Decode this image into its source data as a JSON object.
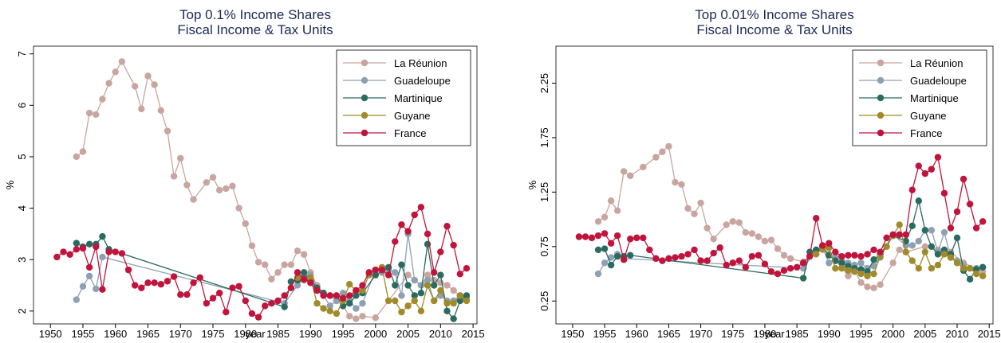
{
  "chart_data": [
    {
      "type": "line",
      "title": "Top 0.1% Income Shares",
      "subtitle": "Fiscal Income & Tax Units",
      "xlabel": "year",
      "ylabel": "%",
      "xlim": [
        1947.4,
        2015.6
      ],
      "ylim": [
        1.75,
        7.15
      ],
      "xticks": [
        1950,
        1955,
        1960,
        1965,
        1970,
        1975,
        1980,
        1985,
        1990,
        1995,
        2000,
        2005,
        2010,
        2015
      ],
      "yticks": [
        2,
        3,
        4,
        5,
        6,
        7
      ],
      "legend": "top-right",
      "grid": false,
      "series": [
        {
          "name": "La Réunion",
          "color": "#c9a59f",
          "x": [
            1954,
            1955,
            1956,
            1957,
            1958,
            1959,
            1960,
            1961,
            1963,
            1964,
            1965,
            1966,
            1967,
            1968,
            1969,
            1970,
            1971,
            1972,
            1974,
            1975,
            1976,
            1977,
            1978,
            1979,
            1980,
            1981,
            1982,
            1983,
            1984,
            1985,
            1986,
            1987,
            1988,
            1989,
            1990,
            1991,
            1992,
            1993,
            1994,
            1995,
            1996,
            1997,
            1998,
            2000,
            2005,
            2006,
            2007,
            2008,
            2009,
            2010,
            2011,
            2012,
            2013,
            2014
          ],
          "values": [
            5.0,
            5.1,
            5.85,
            5.82,
            6.12,
            6.43,
            6.65,
            6.85,
            6.37,
            5.93,
            6.57,
            6.4,
            5.9,
            5.5,
            4.62,
            4.97,
            4.45,
            4.17,
            4.5,
            4.6,
            4.35,
            4.38,
            4.43,
            4.0,
            3.7,
            3.27,
            2.95,
            2.9,
            2.62,
            2.75,
            2.9,
            2.9,
            3.17,
            3.1,
            2.75,
            2.5,
            2.35,
            2.3,
            2.2,
            2.1,
            1.9,
            1.85,
            1.9,
            1.87,
            2.7,
            2.6,
            2.5,
            2.7,
            2.6,
            2.55,
            2.5,
            2.4,
            2.3,
            2.25
          ]
        },
        {
          "name": "Guadeloupe",
          "color": "#8ea1b4",
          "x": [
            1954,
            1955,
            1956,
            1957,
            1958,
            1986,
            1988,
            1989,
            1990,
            1991,
            1992,
            1993,
            1994,
            1995,
            1996,
            1997,
            1998,
            2000,
            2001,
            2002,
            2003,
            2004,
            2005,
            2006,
            2007,
            2008,
            2009,
            2010,
            2011,
            2012,
            2013,
            2014
          ],
          "values": [
            2.22,
            2.48,
            2.68,
            2.43,
            3.05,
            2.15,
            2.5,
            2.65,
            2.7,
            2.45,
            2.3,
            2.1,
            2.2,
            2.35,
            2.2,
            2.05,
            2.15,
            2.8,
            2.75,
            2.8,
            2.75,
            2.3,
            3.5,
            2.6,
            2.5,
            2.6,
            2.2,
            2.3,
            2.2,
            2.2,
            2.3,
            2.3
          ]
        },
        {
          "name": "Martinique",
          "color": "#2a6b5f",
          "x": [
            1954,
            1955,
            1956,
            1957,
            1958,
            1959,
            1986,
            1987,
            1988,
            1989,
            1990,
            1991,
            1992,
            1993,
            1994,
            1995,
            1996,
            1997,
            1998,
            2000,
            2002,
            2003,
            2004,
            2005,
            2006,
            2007,
            2008,
            2009,
            2010,
            2011,
            2012,
            2013,
            2014
          ],
          "values": [
            3.32,
            3.25,
            3.3,
            3.3,
            3.45,
            3.2,
            2.08,
            2.57,
            2.6,
            2.75,
            2.6,
            2.45,
            2.35,
            2.3,
            2.3,
            2.1,
            2.15,
            2.3,
            2.35,
            2.7,
            2.85,
            2.5,
            2.9,
            2.5,
            2.3,
            2.35,
            3.3,
            2.5,
            2.7,
            2.0,
            1.85,
            2.2,
            2.3
          ]
        },
        {
          "name": "Guyane",
          "color": "#a08a2a",
          "x": [
            1988,
            1989,
            1990,
            1991,
            1992,
            1993,
            1994,
            1995,
            1996,
            1997,
            1998,
            1999,
            2000,
            2001,
            2002,
            2003,
            2004,
            2005,
            2006,
            2007,
            2008,
            2009,
            2010,
            2011,
            2012,
            2013,
            2014
          ],
          "values": [
            2.65,
            2.6,
            2.65,
            2.15,
            2.05,
            2.0,
            1.95,
            2.2,
            2.52,
            2.4,
            2.4,
            2.7,
            2.8,
            2.85,
            2.2,
            2.2,
            1.98,
            2.1,
            2.2,
            2.0,
            2.5,
            2.2,
            2.4,
            2.15,
            2.15,
            2.3,
            2.2
          ]
        },
        {
          "name": "France",
          "color": "#c0143c",
          "x": [
            1951,
            1952,
            1953,
            1954,
            1955,
            1956,
            1957,
            1958,
            1959,
            1960,
            1961,
            1962,
            1963,
            1964,
            1965,
            1966,
            1967,
            1968,
            1969,
            1970,
            1971,
            1972,
            1973,
            1974,
            1975,
            1976,
            1977,
            1978,
            1979,
            1980,
            1981,
            1982,
            1983,
            1984,
            1985,
            1986,
            1987,
            1988,
            1989,
            1990,
            1991,
            1992,
            1993,
            1994,
            1995,
            1996,
            1997,
            1998,
            1999,
            2000,
            2001,
            2002,
            2003,
            2004,
            2005,
            2006,
            2007,
            2008,
            2009,
            2010,
            2011,
            2012,
            2013,
            2014
          ],
          "values": [
            3.05,
            3.15,
            3.1,
            3.2,
            3.22,
            2.85,
            3.25,
            2.42,
            3.15,
            3.15,
            3.12,
            2.8,
            2.5,
            2.45,
            2.55,
            2.55,
            2.52,
            2.58,
            2.67,
            2.32,
            2.32,
            2.55,
            2.65,
            2.15,
            2.25,
            2.35,
            1.98,
            2.45,
            2.48,
            2.2,
            1.95,
            1.88,
            2.1,
            2.15,
            2.2,
            2.3,
            2.45,
            2.75,
            2.62,
            2.55,
            2.4,
            2.3,
            2.3,
            2.3,
            2.25,
            2.3,
            2.4,
            2.5,
            2.75,
            2.8,
            2.8,
            2.7,
            3.35,
            3.68,
            3.55,
            3.87,
            4.02,
            3.5,
            2.75,
            3.15,
            3.65,
            3.28,
            2.72,
            2.83
          ]
        }
      ]
    },
    {
      "type": "line",
      "title": "Top 0.01% Income Shares",
      "subtitle": "Fiscal Income & Tax Units",
      "xlabel": "year",
      "ylabel": "%",
      "xlim": [
        1947.4,
        2015.6
      ],
      "ylim": [
        0.04,
        2.59
      ],
      "xticks": [
        1950,
        1955,
        1960,
        1965,
        1970,
        1975,
        1980,
        1985,
        1990,
        1995,
        2000,
        2005,
        2010,
        2015
      ],
      "yticks": [
        0.25,
        0.75,
        1.25,
        1.75,
        2.25
      ],
      "legend": "top-right",
      "grid": false,
      "series": [
        {
          "name": "La Réunion",
          "color": "#c9a59f",
          "x": [
            1954,
            1955,
            1956,
            1957,
            1958,
            1959,
            1961,
            1963,
            1964,
            1965,
            1966,
            1967,
            1968,
            1969,
            1970,
            1971,
            1972,
            1974,
            1975,
            1976,
            1977,
            1978,
            1979,
            1980,
            1981,
            1982,
            1983,
            1984,
            1986,
            1987,
            1988,
            1989,
            1990,
            1991,
            1992,
            1993,
            1994,
            1995,
            1996,
            1997,
            1998,
            2000,
            2001,
            2002,
            2005,
            2007,
            2009,
            2011,
            2013,
            2014
          ],
          "values": [
            0.98,
            1.02,
            1.17,
            1.08,
            1.44,
            1.4,
            1.48,
            1.57,
            1.62,
            1.67,
            1.34,
            1.32,
            1.1,
            1.05,
            1.15,
            0.92,
            0.82,
            0.95,
            0.98,
            0.97,
            0.88,
            0.87,
            0.84,
            0.8,
            0.81,
            0.73,
            0.67,
            0.64,
            0.61,
            0.66,
            0.72,
            0.72,
            0.68,
            0.62,
            0.56,
            0.48,
            0.53,
            0.42,
            0.38,
            0.37,
            0.4,
            0.6,
            0.72,
            0.7,
            0.75,
            0.72,
            0.7,
            0.6,
            0.55,
            0.52
          ]
        },
        {
          "name": "Guadeloupe",
          "color": "#8ea1b4",
          "x": [
            1954,
            1955,
            1956,
            1957,
            1958,
            1986,
            1988,
            1989,
            1990,
            1991,
            1992,
            1993,
            1994,
            1995,
            1996,
            1997,
            1998,
            2000,
            2002,
            2003,
            2004,
            2005,
            2006,
            2007,
            2008,
            2009,
            2010,
            2011,
            2012,
            2013,
            2014
          ],
          "values": [
            0.5,
            0.6,
            0.65,
            0.68,
            0.64,
            0.55,
            0.72,
            0.74,
            0.6,
            0.65,
            0.62,
            0.6,
            0.58,
            0.6,
            0.55,
            0.57,
            0.65,
            0.86,
            0.76,
            0.76,
            0.8,
            0.9,
            0.9,
            0.7,
            0.88,
            0.65,
            0.62,
            0.58,
            0.55,
            0.55,
            0.56
          ]
        },
        {
          "name": "Martinique",
          "color": "#2a6b5f",
          "x": [
            1954,
            1955,
            1956,
            1957,
            1958,
            1959,
            1986,
            1987,
            1988,
            1989,
            1990,
            1991,
            1992,
            1993,
            1994,
            1995,
            1996,
            1997,
            1998,
            2000,
            2002,
            2003,
            2004,
            2005,
            2006,
            2007,
            2008,
            2009,
            2010,
            2011,
            2012,
            2013,
            2014
          ],
          "values": [
            0.72,
            0.73,
            0.58,
            0.66,
            0.66,
            0.67,
            0.46,
            0.7,
            0.72,
            0.75,
            0.67,
            0.62,
            0.6,
            0.57,
            0.55,
            0.54,
            0.52,
            0.63,
            0.68,
            0.85,
            0.8,
            0.94,
            1.17,
            0.9,
            0.75,
            0.68,
            0.72,
            0.68,
            0.83,
            0.53,
            0.45,
            0.54,
            0.56
          ]
        },
        {
          "name": "Guyane",
          "color": "#a08a2a",
          "x": [
            1988,
            1989,
            1990,
            1991,
            1992,
            1993,
            1994,
            1995,
            1996,
            1997,
            1998,
            1999,
            2000,
            2001,
            2002,
            2003,
            2004,
            2005,
            2006,
            2007,
            2008,
            2009,
            2010,
            2011,
            2012,
            2013,
            2014
          ],
          "values": [
            0.68,
            0.73,
            0.74,
            0.55,
            0.55,
            0.53,
            0.52,
            0.5,
            0.48,
            0.5,
            0.66,
            0.75,
            0.85,
            0.95,
            0.7,
            0.62,
            0.55,
            0.7,
            0.55,
            0.58,
            0.68,
            0.65,
            0.6,
            0.55,
            0.55,
            0.5,
            0.48
          ]
        },
        {
          "name": "France",
          "color": "#c0143c",
          "x": [
            1951,
            1952,
            1953,
            1954,
            1955,
            1956,
            1957,
            1958,
            1959,
            1960,
            1961,
            1962,
            1963,
            1964,
            1965,
            1966,
            1967,
            1968,
            1969,
            1970,
            1971,
            1972,
            1973,
            1974,
            1975,
            1976,
            1977,
            1978,
            1979,
            1980,
            1981,
            1982,
            1983,
            1984,
            1985,
            1986,
            1987,
            1988,
            1989,
            1990,
            1991,
            1992,
            1993,
            1994,
            1995,
            1996,
            1997,
            1998,
            1999,
            2000,
            2001,
            2002,
            2003,
            2004,
            2005,
            2006,
            2007,
            2008,
            2009,
            2010,
            2011,
            2012,
            2013,
            2014
          ],
          "values": [
            0.84,
            0.84,
            0.83,
            0.85,
            0.87,
            0.78,
            0.85,
            0.63,
            0.82,
            0.83,
            0.83,
            0.72,
            0.64,
            0.62,
            0.64,
            0.65,
            0.66,
            0.68,
            0.72,
            0.62,
            0.62,
            0.69,
            0.74,
            0.58,
            0.6,
            0.62,
            0.56,
            0.66,
            0.67,
            0.59,
            0.52,
            0.5,
            0.53,
            0.55,
            0.56,
            0.6,
            0.66,
            1.01,
            0.76,
            0.78,
            0.7,
            0.66,
            0.67,
            0.67,
            0.66,
            0.68,
            0.72,
            0.7,
            0.83,
            0.86,
            0.86,
            0.86,
            1.27,
            1.49,
            1.42,
            1.46,
            1.57,
            1.24,
            0.92,
            1.07,
            1.37,
            1.14,
            0.92,
            0.98
          ]
        }
      ]
    }
  ]
}
